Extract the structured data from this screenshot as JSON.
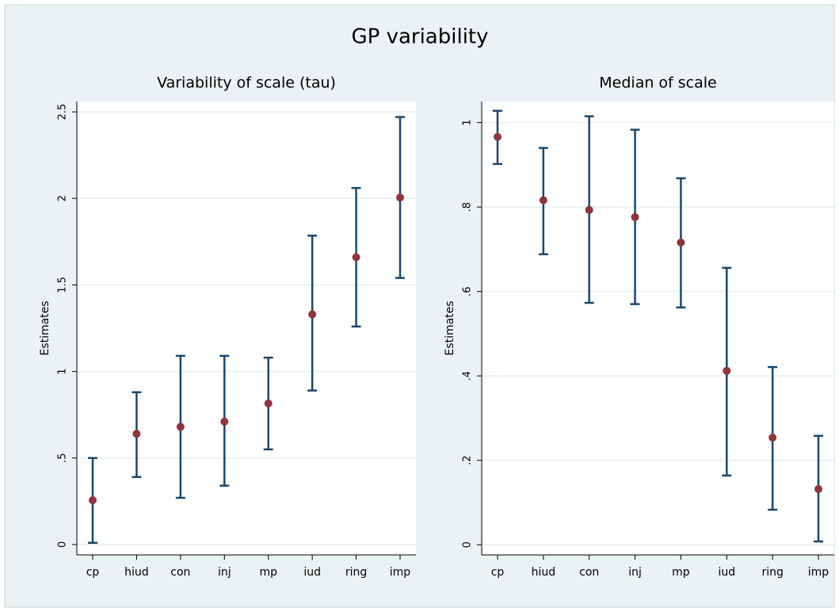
{
  "title": "GP variability",
  "chart_data": [
    {
      "type": "errorbar",
      "title": "Variability of scale (tau)",
      "y_label": "Estimates",
      "categories": [
        "cp",
        "hiud",
        "con",
        "inj",
        "mp",
        "iud",
        "ring",
        "imp"
      ],
      "values": [
        0.256,
        0.64,
        0.68,
        0.71,
        0.815,
        1.33,
        1.66,
        2.005
      ],
      "lower": [
        0.01,
        0.39,
        0.27,
        0.34,
        0.55,
        0.89,
        1.26,
        1.54
      ],
      "upper": [
        0.5,
        0.88,
        1.09,
        1.09,
        1.08,
        1.785,
        2.06,
        2.47
      ],
      "ylim": [
        -0.06,
        2.56
      ],
      "yticks": [
        0,
        {
          "value": 0.5,
          "label": ".5"
        },
        1,
        1.5,
        2,
        2.5
      ],
      "grid": true,
      "bar_color": "#1a476f",
      "point_color": "#90353b"
    },
    {
      "type": "errorbar",
      "title": "Median of scale",
      "y_label": "Estimates",
      "categories": [
        "cp",
        "hiud",
        "con",
        "inj",
        "mp",
        "iud",
        "ring",
        "imp"
      ],
      "values": [
        0.966,
        0.816,
        0.793,
        0.776,
        0.716,
        0.412,
        0.254,
        0.132
      ],
      "lower": [
        0.902,
        0.688,
        0.573,
        0.57,
        0.562,
        0.164,
        0.083,
        0.008
      ],
      "upper": [
        1.028,
        0.94,
        1.015,
        0.983,
        0.868,
        0.656,
        0.421,
        0.258
      ],
      "ylim": [
        -0.024,
        1.05
      ],
      "yticks": [
        0,
        {
          "value": 0.2,
          "label": ".2"
        },
        {
          "value": 0.4,
          "label": ".4"
        },
        {
          "value": 0.6,
          "label": ".6"
        },
        {
          "value": 0.8,
          "label": ".8"
        },
        1
      ],
      "grid": true,
      "bar_color": "#1a476f",
      "point_color": "#90353b"
    }
  ]
}
